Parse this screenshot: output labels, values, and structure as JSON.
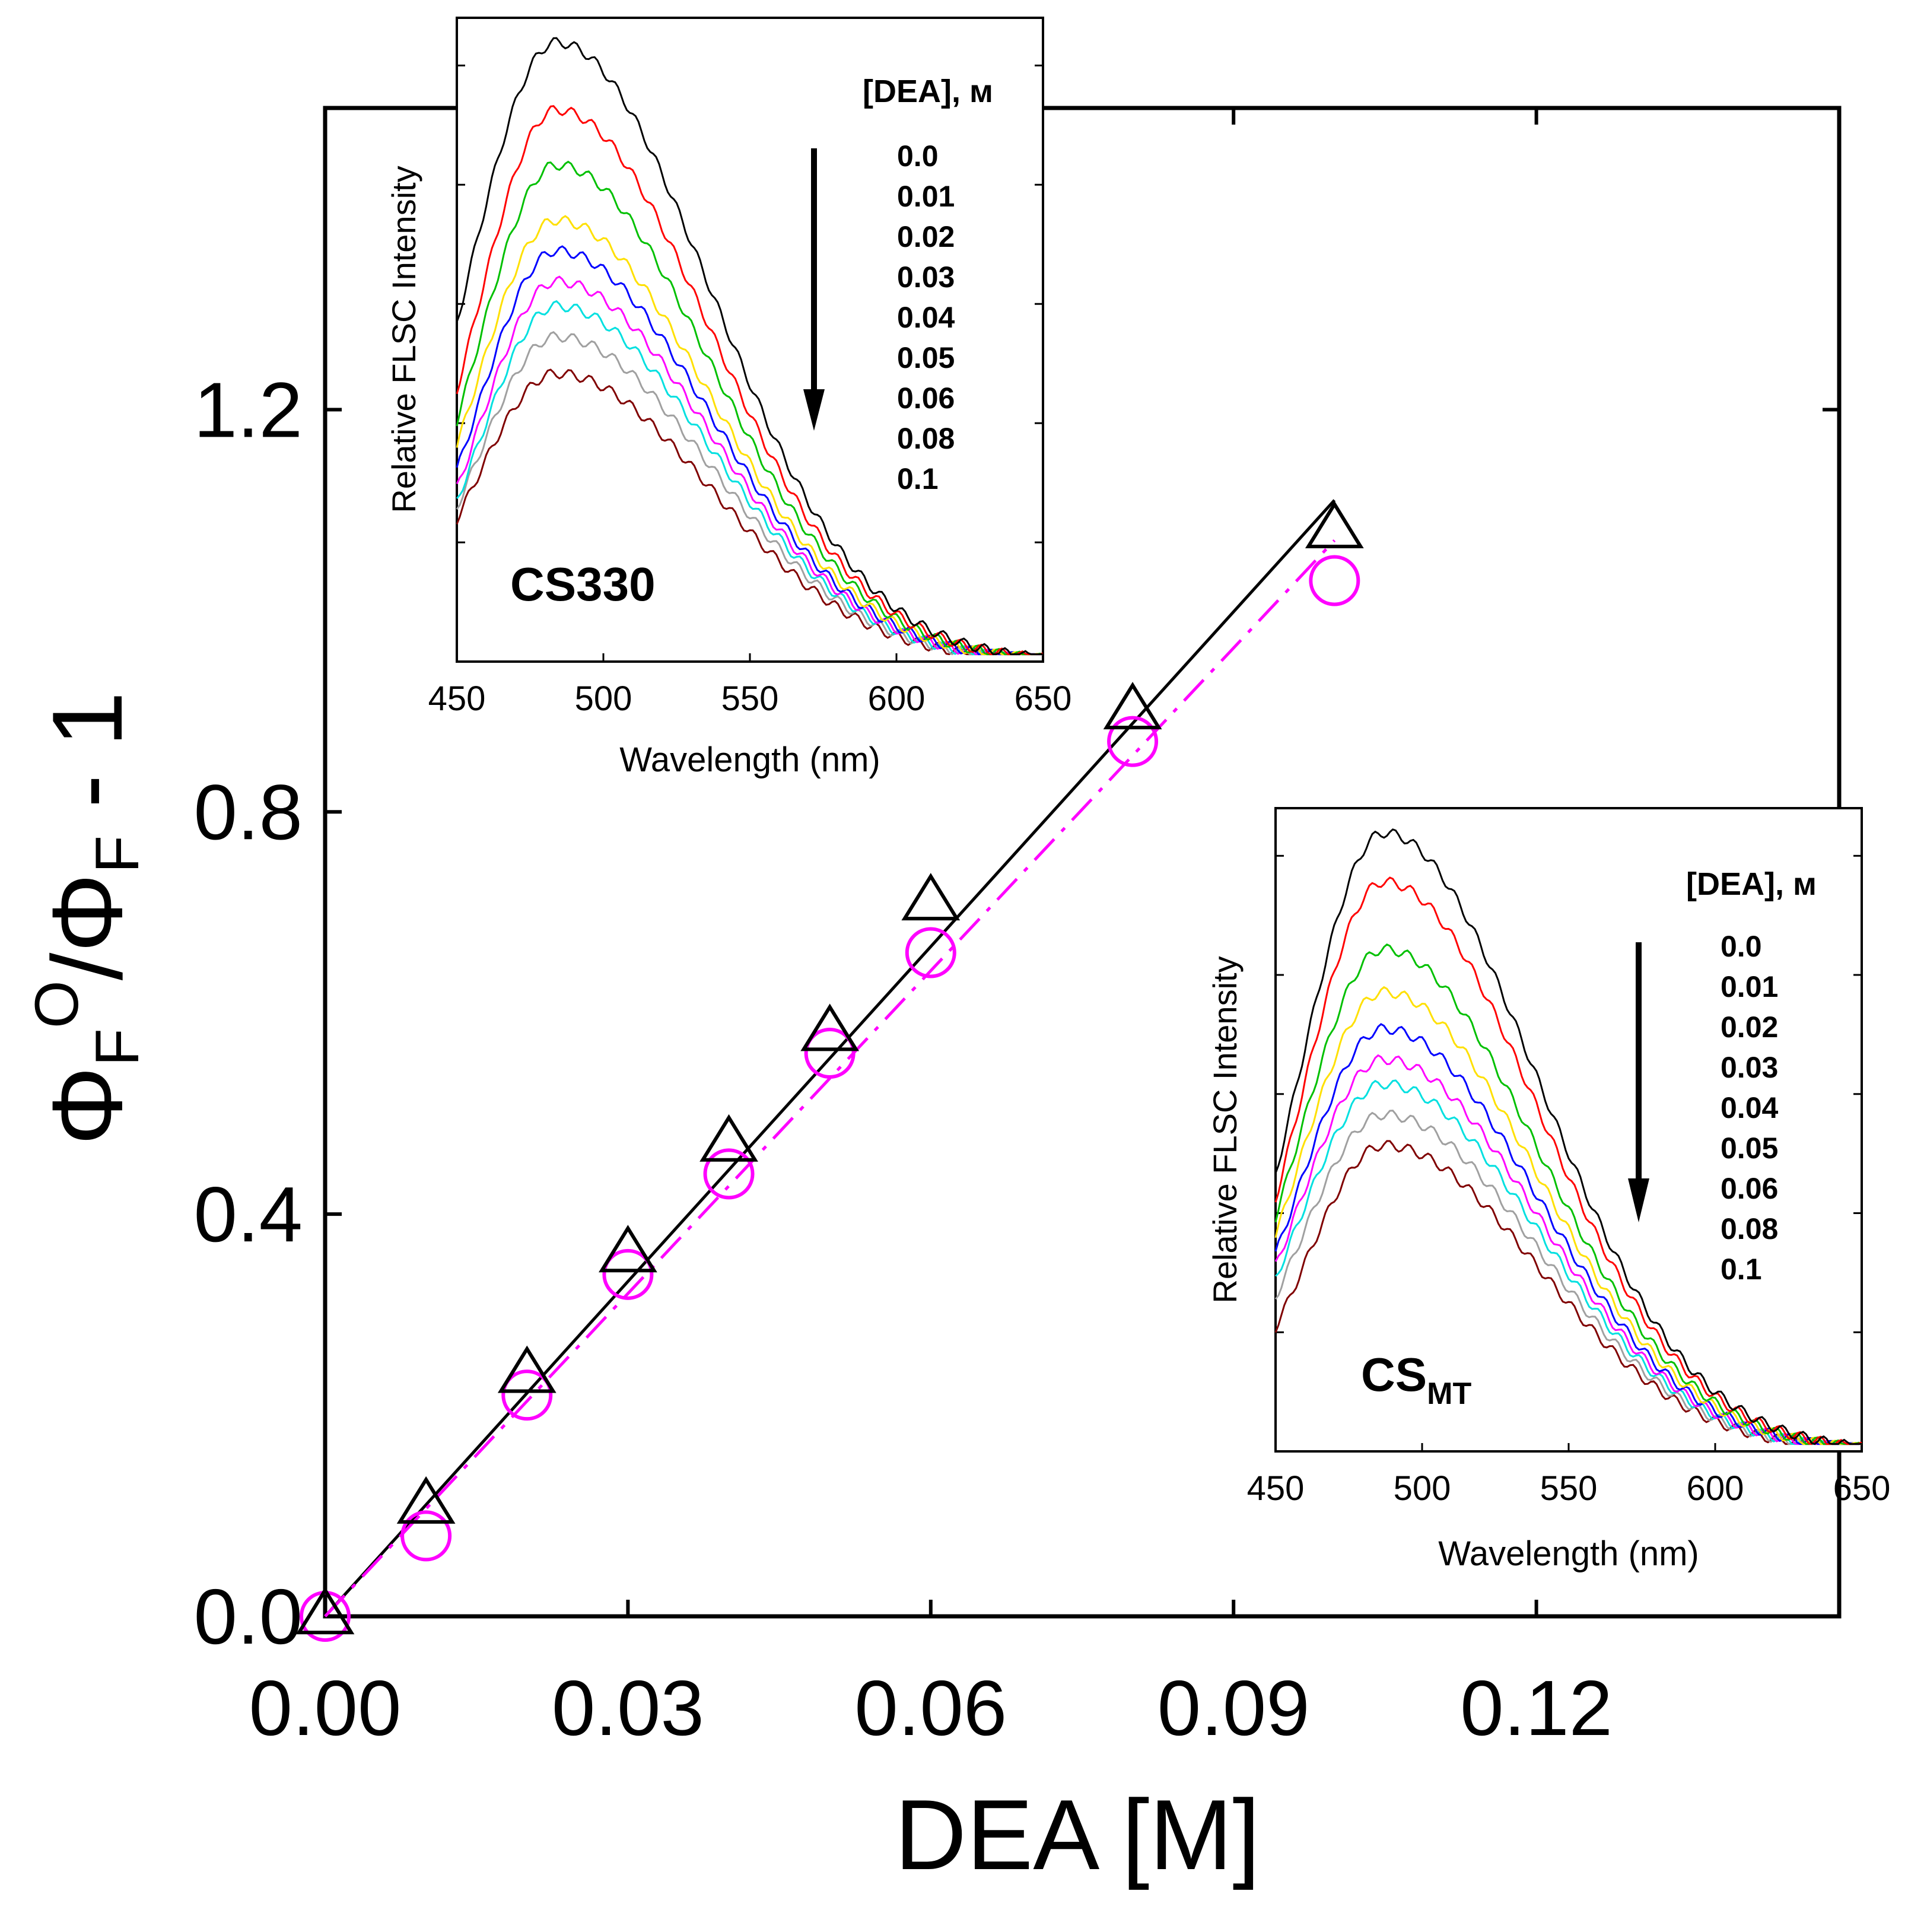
{
  "chart_data": [
    {
      "id": "main",
      "type": "scatter",
      "title": "",
      "xlabel": "DEA [M]",
      "ylabel": {
        "base1": "Φ",
        "sub1": "F",
        "sup1": "O",
        "slash": "/Φ",
        "sub2": "F",
        "tail": " - 1"
      },
      "xlim": [
        0,
        0.15
      ],
      "ylim": [
        0,
        1.5
      ],
      "xticks": [
        0.0,
        0.03,
        0.06,
        0.09,
        0.12
      ],
      "xticklabels": [
        "0.00",
        "0.03",
        "0.06",
        "0.09",
        "0.12"
      ],
      "yticks": [
        0.0,
        0.4,
        0.8,
        1.2
      ],
      "yticklabels": [
        "0.0",
        "0.4",
        "0.8",
        "1.2"
      ],
      "grid": false,
      "series": [
        {
          "name": "CS330",
          "marker": "triangle",
          "color": "#000000",
          "x": [
            0.0,
            0.01,
            0.02,
            0.03,
            0.04,
            0.05,
            0.06,
            0.08,
            0.1
          ],
          "y": [
            0.0,
            0.11,
            0.24,
            0.36,
            0.47,
            0.58,
            0.71,
            0.9,
            1.08
          ],
          "fit": {
            "style": "solid",
            "x": [
              0.0,
              0.1
            ],
            "y": [
              0.0,
              1.11
            ]
          }
        },
        {
          "name": "CSMT",
          "marker": "circle",
          "color": "#ff00ff",
          "x": [
            0.0,
            0.01,
            0.02,
            0.03,
            0.04,
            0.05,
            0.06,
            0.08,
            0.1
          ],
          "y": [
            0.0,
            0.08,
            0.22,
            0.34,
            0.44,
            0.56,
            0.66,
            0.87,
            1.03
          ],
          "fit": {
            "style": "dash-dot",
            "x": [
              0.0,
              0.1
            ],
            "y": [
              0.0,
              1.07
            ]
          }
        }
      ]
    },
    {
      "id": "inset1",
      "type": "line",
      "label": "CS330",
      "xlabel": "Wavelength (nm)",
      "ylabel": "Relative FLSC Intensity",
      "xlim": [
        450,
        650
      ],
      "ylim": [
        0,
        1.05
      ],
      "xticks": [
        450,
        500,
        550,
        600,
        650
      ],
      "xticklabels": [
        "450",
        "500",
        "550",
        "600",
        "650"
      ],
      "legend_title": "[DEA], м",
      "concentrations": [
        "0.0",
        "0.01",
        "0.02",
        "0.03",
        "0.04",
        "0.05",
        "0.06",
        "0.08",
        "0.1"
      ],
      "colors": [
        "#000000",
        "#ff0000",
        "#00c000",
        "#ffe000",
        "#0000ff",
        "#ff00ff",
        "#00e0e0",
        "#a0a0a0",
        "#800000"
      ],
      "peak_nm": 484,
      "peaks": [
        1.0,
        0.89,
        0.8,
        0.71,
        0.66,
        0.61,
        0.57,
        0.52,
        0.46
      ],
      "start_values": [
        0.54,
        0.43,
        0.38,
        0.34,
        0.3,
        0.27,
        0.25,
        0.24,
        0.22
      ]
    },
    {
      "id": "inset2",
      "type": "line",
      "label": "CS",
      "label_sub": "MT",
      "xlabel": "Wavelength (nm)",
      "ylabel": "Relative FLSC Intensity",
      "xlim": [
        450,
        650
      ],
      "ylim": [
        0,
        1.05
      ],
      "xticks": [
        450,
        500,
        550,
        600,
        650
      ],
      "xticklabels": [
        "450",
        "500",
        "550",
        "600",
        "650"
      ],
      "legend_title": "[DEA], м",
      "concentrations": [
        "0.0",
        "0.01",
        "0.02",
        "0.03",
        "0.04",
        "0.05",
        "0.06",
        "0.08",
        "0.1"
      ],
      "colors": [
        "#000000",
        "#ff0000",
        "#00c000",
        "#ffe000",
        "#0000ff",
        "#ff00ff",
        "#00e0e0",
        "#a0a0a0",
        "#800000"
      ],
      "peak_nm": 487,
      "peaks": [
        1.0,
        0.92,
        0.81,
        0.74,
        0.68,
        0.63,
        0.59,
        0.54,
        0.49
      ],
      "start_values": [
        0.44,
        0.4,
        0.37,
        0.34,
        0.31,
        0.29,
        0.27,
        0.24,
        0.19
      ]
    }
  ]
}
